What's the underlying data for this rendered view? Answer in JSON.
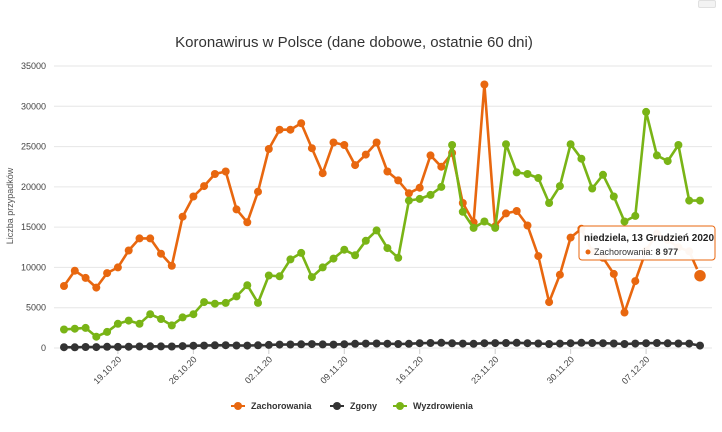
{
  "colors": {
    "zachorowania": "#e8670f",
    "zgony": "#333333",
    "wyzdrowienia": "#79b416",
    "grid": "#e6e6e6"
  },
  "tooltip": {
    "title": "niedziela, 13 Grudzień 2020",
    "label": "Zachorowania",
    "value": "8 977"
  },
  "chart_data": {
    "type": "line",
    "title": "Koronawirus w Polsce (dane dobowe, ostatnie 60 dni)",
    "ylabel": "Liczba przypadków",
    "xlabel": "",
    "ylim": [
      0,
      35000
    ],
    "yticks": [
      "0",
      "5000",
      "10000",
      "15000",
      "20000",
      "25000",
      "30000",
      "35000"
    ],
    "x_tick_labels": [
      {
        "index": 5,
        "label": "19.10.20"
      },
      {
        "index": 12,
        "label": "26.10.20"
      },
      {
        "index": 19,
        "label": "02.11.20"
      },
      {
        "index": 26,
        "label": "09.11.20"
      },
      {
        "index": 33,
        "label": "16.11.20"
      },
      {
        "index": 40,
        "label": "23.11.20"
      },
      {
        "index": 47,
        "label": "30.11.20"
      },
      {
        "index": 54,
        "label": "07.12.20"
      }
    ],
    "grid": true,
    "legend_position": "bottom",
    "highlight_index": 59,
    "series": [
      {
        "name": "Zachorowania",
        "values": [
          7700,
          9600,
          8700,
          7500,
          9300,
          10000,
          12100,
          13600,
          13600,
          11700,
          10200,
          16300,
          18800,
          20100,
          21600,
          21900,
          17200,
          15600,
          19400,
          24700,
          27100,
          27100,
          27900,
          24800,
          21700,
          25500,
          25200,
          22700,
          24000,
          25500,
          21900,
          20800,
          19200,
          19900,
          23900,
          22500,
          24200,
          18000,
          15600,
          32700,
          15100,
          16700,
          17000,
          15200,
          11400,
          5700,
          9100,
          13700,
          14800,
          12000,
          11200,
          9200,
          4400,
          8300,
          12100,
          14200,
          13400,
          12500,
          12000,
          8977
        ]
      },
      {
        "name": "Zgony",
        "values": [
          100,
          90,
          120,
          110,
          150,
          140,
          160,
          180,
          210,
          200,
          180,
          240,
          280,
          300,
          330,
          350,
          310,
          300,
          340,
          380,
          420,
          440,
          460,
          480,
          450,
          420,
          470,
          520,
          540,
          560,
          530,
          500,
          520,
          600,
          620,
          640,
          580,
          550,
          520,
          600,
          610,
          620,
          640,
          600,
          560,
          500,
          550,
          600,
          640,
          620,
          600,
          560,
          500,
          540,
          600,
          620,
          580,
          560,
          540,
          300
        ]
      },
      {
        "name": "Wyzdrowienia",
        "values": [
          2300,
          2400,
          2500,
          1400,
          2000,
          3000,
          3400,
          3000,
          4200,
          3600,
          2800,
          3800,
          4200,
          5700,
          5500,
          5600,
          6400,
          7800,
          5600,
          9000,
          8900,
          11000,
          11800,
          8800,
          10000,
          11100,
          12200,
          11500,
          13300,
          14600,
          12400,
          11200,
          18300,
          18500,
          19000,
          20000,
          25200,
          16900,
          14900,
          15700,
          14900,
          25300,
          21800,
          21600,
          21100,
          18000,
          20100,
          25300,
          23500,
          19800,
          21500,
          18800,
          15700,
          16400,
          29300,
          23900,
          23200,
          25200,
          18300,
          18300
        ]
      }
    ]
  }
}
